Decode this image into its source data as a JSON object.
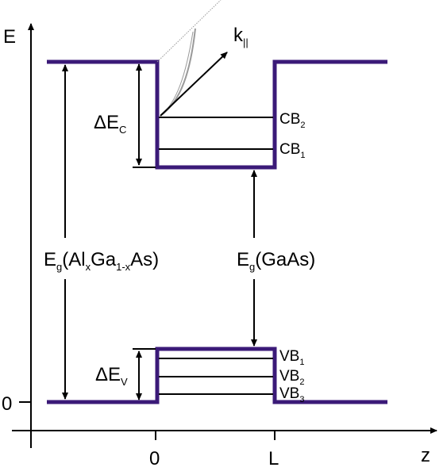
{
  "axes": {
    "energy_label": "E",
    "position_label": "z",
    "energy_zero_tick": "0",
    "position_zero_tick": "0",
    "position_well_width_tick": "L"
  },
  "labels": {
    "k_parallel": {
      "base": "k",
      "sub": "||"
    },
    "conduction_offset": {
      "base": "ΔE",
      "sub": "C"
    },
    "valence_offset": {
      "base": "ΔE",
      "sub": "V"
    },
    "barrier_gap": {
      "base": "E",
      "sub": "g",
      "rest": "(Al",
      "sub2": "x",
      "rest2": "Ga",
      "sub3": "1-x",
      "rest3": "As)"
    },
    "well_gap": {
      "base": "E",
      "sub": "g",
      "rest": "(GaAs)"
    }
  },
  "levels": {
    "conduction": [
      {
        "base": "CB",
        "sub": "2"
      },
      {
        "base": "CB",
        "sub": "1"
      }
    ],
    "valence": [
      {
        "base": "VB",
        "sub": "1"
      },
      {
        "base": "VB",
        "sub": "2"
      },
      {
        "base": "VB",
        "sub": "3"
      }
    ]
  },
  "colors": {
    "band_edge": "#3b1a78",
    "lines": "#000000",
    "dispersion": "#9a9a9a"
  }
}
